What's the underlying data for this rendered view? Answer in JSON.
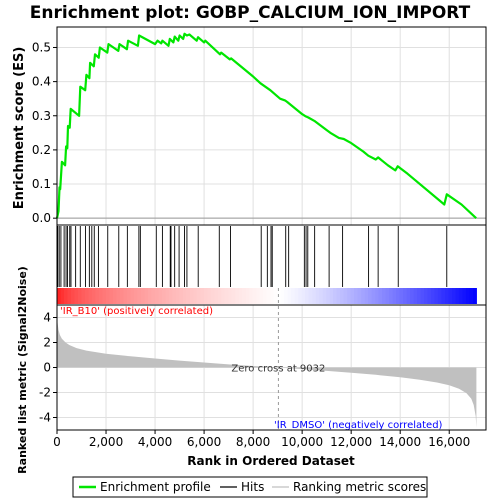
{
  "chart_data": {
    "type": "line",
    "title": "Enrichment plot: GOBP_CALCIUM_ION_IMPORT",
    "colors": {
      "profile": "#00e600",
      "hits": "#000000",
      "metric_fill": "#c0c0c0",
      "positive_band": "#ff0000",
      "negative_band": "#0000ff",
      "positive_label": "#ff0000",
      "negative_label": "#0000ff",
      "grid": "#e0e0e0"
    },
    "top_panel": {
      "ylabel": "Enrichment score (ES)",
      "ylim": [
        -0.02,
        0.56
      ],
      "yticks": [
        0.0,
        0.1,
        0.2,
        0.3,
        0.4,
        0.5
      ],
      "ytick_labels": [
        "0.0",
        "0.1",
        "0.2",
        "0.3",
        "0.4",
        "0.5"
      ],
      "series": [
        {
          "name": "Enrichment profile",
          "x": [
            0,
            60,
            100,
            130,
            200,
            330,
            370,
            420,
            450,
            520,
            560,
            900,
            950,
            1150,
            1200,
            1320,
            1350,
            1500,
            1550,
            1700,
            1750,
            2050,
            2100,
            2500,
            2550,
            2850,
            2900,
            3300,
            3350,
            4000,
            4100,
            4250,
            4300,
            4550,
            4600,
            4750,
            4800,
            4950,
            5000,
            5150,
            5200,
            5300,
            5400,
            5700,
            5750,
            6000,
            6050,
            6650,
            6700,
            7050,
            7100,
            8000,
            8300,
            8700,
            9100,
            9300,
            9400,
            10000,
            10150,
            10250,
            10500,
            11000,
            11150,
            11500,
            11700,
            12000,
            12500,
            12700,
            13000,
            13100,
            13500,
            13800,
            13900,
            14300,
            15800,
            15900,
            16500,
            17100
          ],
          "y": [
            0.0,
            0.02,
            0.09,
            0.085,
            0.165,
            0.155,
            0.21,
            0.205,
            0.27,
            0.265,
            0.32,
            0.3,
            0.385,
            0.375,
            0.42,
            0.41,
            0.455,
            0.445,
            0.48,
            0.47,
            0.5,
            0.485,
            0.51,
            0.49,
            0.51,
            0.495,
            0.52,
            0.505,
            0.535,
            0.51,
            0.52,
            0.512,
            0.52,
            0.505,
            0.525,
            0.515,
            0.532,
            0.52,
            0.535,
            0.525,
            0.54,
            0.535,
            0.538,
            0.52,
            0.53,
            0.515,
            0.52,
            0.48,
            0.485,
            0.465,
            0.468,
            0.415,
            0.395,
            0.375,
            0.35,
            0.345,
            0.34,
            0.305,
            0.298,
            0.295,
            0.285,
            0.258,
            0.25,
            0.235,
            0.232,
            0.22,
            0.195,
            0.183,
            0.172,
            0.178,
            0.155,
            0.14,
            0.152,
            0.13,
            0.04,
            0.07,
            0.04,
            0.0
          ]
        }
      ]
    },
    "hits": [
      30,
      90,
      160,
      290,
      370,
      430,
      520,
      570,
      760,
      950,
      1160,
      1320,
      1420,
      1520,
      1690,
      2070,
      2520,
      2870,
      3340,
      3400,
      4050,
      4300,
      4620,
      4650,
      4800,
      4980,
      5200,
      5300,
      5760,
      6620,
      7080,
      8330,
      8580,
      8730,
      8780,
      9330,
      9450,
      10090,
      10160,
      10230,
      10510,
      11100,
      11650,
      12710,
      13100,
      13920,
      15900
    ],
    "bottom_panel": {
      "ylabel": "Ranked list metric (Signal2Noise)",
      "ylim": [
        -5,
        5
      ],
      "yticks": [
        -4,
        -2,
        0,
        2,
        4
      ],
      "ytick_labels": [
        "-4",
        "-2",
        "0",
        "2",
        "4"
      ],
      "xlabel": "Rank in Ordered Dataset",
      "xlim": [
        0,
        17500
      ],
      "xticks": [
        0,
        2000,
        4000,
        6000,
        8000,
        10000,
        12000,
        14000,
        16000
      ],
      "xtick_labels": [
        "0",
        "2,000",
        "4,000",
        "6,000",
        "8,000",
        "10,000",
        "12,000",
        "14,000",
        "16,000"
      ],
      "metric_curve": {
        "x": [
          0,
          20,
          60,
          120,
          200,
          350,
          500,
          800,
          1200,
          2000,
          3000,
          4000,
          5000,
          6000,
          7000,
          8000,
          9032,
          10000,
          11000,
          12000,
          13000,
          14000,
          14800,
          15500,
          16000,
          16400,
          16700,
          16900,
          17000,
          17080,
          17110
        ],
        "y": [
          4.6,
          3.6,
          3.0,
          2.6,
          2.3,
          2.0,
          1.8,
          1.55,
          1.35,
          1.1,
          0.9,
          0.72,
          0.55,
          0.4,
          0.25,
          0.12,
          0.0,
          -0.13,
          -0.27,
          -0.42,
          -0.58,
          -0.78,
          -0.98,
          -1.2,
          -1.42,
          -1.7,
          -2.05,
          -2.5,
          -3.0,
          -3.9,
          -4.8
        ]
      },
      "zero_cross_rank": 9032,
      "zero_cross_label": "Zero cross at 9032",
      "positive_label": "'IR_B10' (positively correlated)",
      "negative_label": "'IR_DMSO' (negatively correlated)"
    },
    "total_ranks": 17110,
    "legend": {
      "items": [
        {
          "label": "Enrichment profile",
          "color": "#00e600"
        },
        {
          "label": "Hits",
          "color": "#000000"
        },
        {
          "label": "Ranking metric scores",
          "color": "#c0c0c0"
        }
      ]
    }
  }
}
